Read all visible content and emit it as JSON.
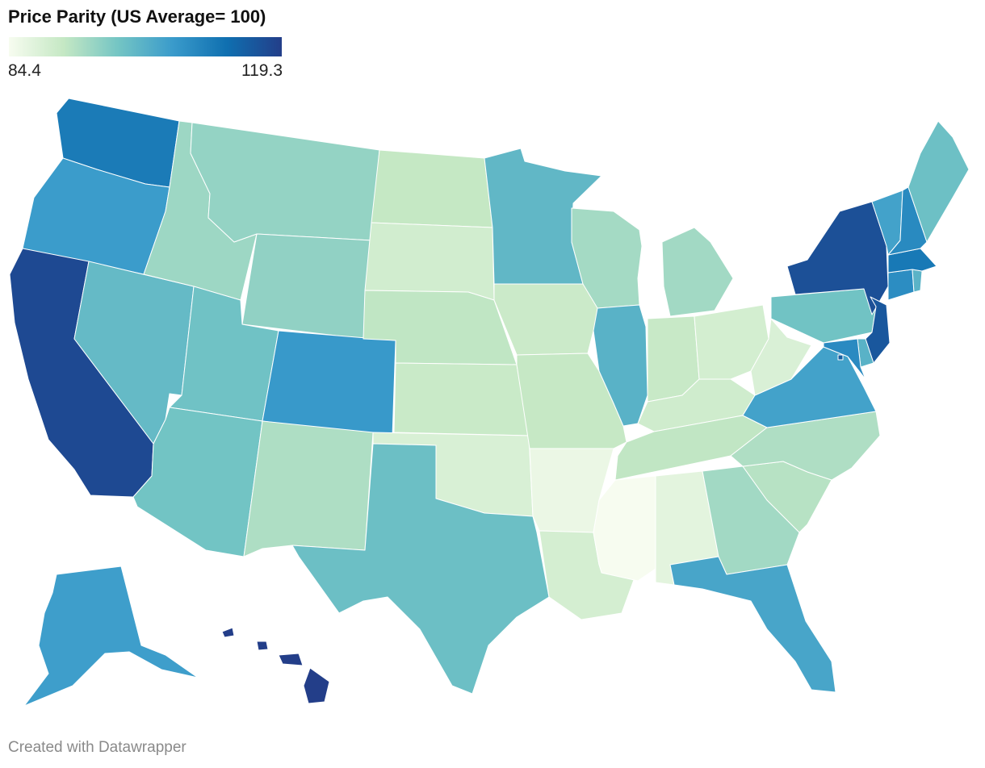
{
  "header": {
    "title": "Price Parity (US Average= 100)"
  },
  "legend": {
    "min_label": "84.4",
    "max_label": "119.3",
    "min_value": 84.4,
    "max_value": 119.3,
    "gradient": [
      "#f7fcf0",
      "#c5e8c4",
      "#74c5c4",
      "#3a9bcb",
      "#0f6fb0",
      "#233e89"
    ]
  },
  "footer": {
    "credit": "Created with Datawrapper"
  },
  "map_data": {
    "type": "choropleth",
    "region": "United States",
    "states": [
      {
        "code": "WA",
        "value": 110.4
      },
      {
        "code": "OR",
        "value": 105.2
      },
      {
        "code": "CA",
        "value": 117.7
      },
      {
        "code": "NV",
        "value": 100.2
      },
      {
        "code": "ID",
        "value": 94.8
      },
      {
        "code": "MT",
        "value": 95.6
      },
      {
        "code": "WY",
        "value": 95.9
      },
      {
        "code": "UT",
        "value": 98.9
      },
      {
        "code": "AZ",
        "value": 98.6
      },
      {
        "code": "CO",
        "value": 105.6
      },
      {
        "code": "NM",
        "value": 93.4
      },
      {
        "code": "ND",
        "value": 91.4
      },
      {
        "code": "SD",
        "value": 89.7
      },
      {
        "code": "NE",
        "value": 91.8
      },
      {
        "code": "KS",
        "value": 90.8
      },
      {
        "code": "OK",
        "value": 88.7
      },
      {
        "code": "TX",
        "value": 99.3
      },
      {
        "code": "MN",
        "value": 100.7
      },
      {
        "code": "IA",
        "value": 90.6
      },
      {
        "code": "MO",
        "value": 91.3
      },
      {
        "code": "AR",
        "value": 86.1
      },
      {
        "code": "LA",
        "value": 89.3
      },
      {
        "code": "WI",
        "value": 94.2
      },
      {
        "code": "IL",
        "value": 101.6
      },
      {
        "code": "MI",
        "value": 94.4
      },
      {
        "code": "IN",
        "value": 90.9
      },
      {
        "code": "OH",
        "value": 89.4
      },
      {
        "code": "KY",
        "value": 90.0
      },
      {
        "code": "TN",
        "value": 91.7
      },
      {
        "code": "MS",
        "value": 84.4
      },
      {
        "code": "AL",
        "value": 87.2
      },
      {
        "code": "GA",
        "value": 94.4
      },
      {
        "code": "FL",
        "value": 103.7
      },
      {
        "code": "SC",
        "value": 92.6
      },
      {
        "code": "NC",
        "value": 93.3
      },
      {
        "code": "VA",
        "value": 104.2
      },
      {
        "code": "WV",
        "value": 88.6
      },
      {
        "code": "PA",
        "value": 98.7
      },
      {
        "code": "NY",
        "value": 116.8
      },
      {
        "code": "NJ",
        "value": 115.7
      },
      {
        "code": "DE",
        "value": 101.6
      },
      {
        "code": "MD",
        "value": 108.0
      },
      {
        "code": "DC",
        "value": 114.8
      },
      {
        "code": "CT",
        "value": 107.6
      },
      {
        "code": "RI",
        "value": 101.4
      },
      {
        "code": "MA",
        "value": 110.8
      },
      {
        "code": "VT",
        "value": 104.2
      },
      {
        "code": "NH",
        "value": 108.1
      },
      {
        "code": "ME",
        "value": 99.2
      },
      {
        "code": "AK",
        "value": 104.9
      },
      {
        "code": "HI",
        "value": 119.3
      }
    ]
  }
}
